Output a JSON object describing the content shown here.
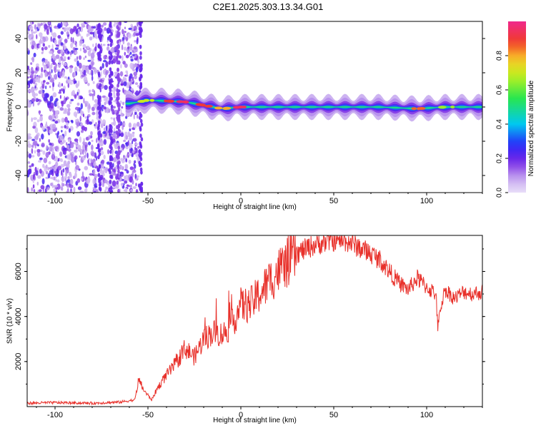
{
  "title": "C2E1.2025.303.13.34.G01",
  "chart_data": [
    {
      "type": "heatmap",
      "xlabel": "Height of straight line (km)",
      "ylabel": "Frequency (Hz)",
      "xlim": [
        -115,
        130
      ],
      "ylim": [
        -50,
        50
      ],
      "xticks": [
        "-100",
        "-50",
        "0",
        "50",
        "100"
      ],
      "xtick_values": [
        -100,
        -50,
        0,
        50,
        100
      ],
      "yticks": [
        "-40",
        "-20",
        "0",
        "20",
        "40"
      ],
      "ytick_values": [
        -40,
        -20,
        0,
        20,
        40
      ],
      "colorbar": {
        "label": "Normalized spectral amplitude",
        "range": [
          0,
          1
        ],
        "ticks": [
          "0.0",
          "0.2",
          "0.4",
          "0.6",
          "0.8"
        ],
        "tick_values": [
          0.0,
          0.2,
          0.4,
          0.6,
          0.8
        ]
      },
      "noise_region_km": [
        -115,
        -55
      ],
      "signal_band": [
        {
          "x": -60,
          "freq": 2,
          "amp": 0.55
        },
        {
          "x": -50,
          "freq": 4,
          "amp": 0.7
        },
        {
          "x": -40,
          "freq": 3.5,
          "amp": 0.9
        },
        {
          "x": -30,
          "freq": 3,
          "amp": 0.95
        },
        {
          "x": -20,
          "freq": 1,
          "amp": 0.9
        },
        {
          "x": -10,
          "freq": -1,
          "amp": 0.8
        },
        {
          "x": 0,
          "freq": 0,
          "amp": 0.95
        },
        {
          "x": 25,
          "freq": 0,
          "amp": 0.55
        },
        {
          "x": 50,
          "freq": 0,
          "amp": 0.5
        },
        {
          "x": 75,
          "freq": 0,
          "amp": 0.5
        },
        {
          "x": 95,
          "freq": -1,
          "amp": 0.85
        },
        {
          "x": 110,
          "freq": 0,
          "amp": 0.65
        },
        {
          "x": 130,
          "freq": 0,
          "amp": 0.6
        }
      ]
    },
    {
      "type": "line",
      "xlabel": "Height of straight line (km)",
      "ylabel": "SNR (10 * v/v)",
      "xlim": [
        -115,
        130
      ],
      "ylim": [
        0,
        7600
      ],
      "xticks": [
        "-100",
        "-50",
        "0",
        "50",
        "100"
      ],
      "xtick_values": [
        -100,
        -50,
        0,
        50,
        100
      ],
      "yticks": [
        "2000",
        "4000",
        "6000"
      ],
      "ytick_values": [
        2000,
        4000,
        6000
      ],
      "color": "#e8302a",
      "x": [
        -115,
        -100,
        -80,
        -65,
        -57,
        -55,
        -52,
        -48,
        -45,
        -40,
        -35,
        -30,
        -25,
        -20,
        -15,
        -10,
        -5,
        0,
        5,
        10,
        20,
        30,
        40,
        50,
        55,
        60,
        65,
        70,
        75,
        80,
        85,
        90,
        95,
        100,
        105,
        106,
        108,
        110,
        115,
        120,
        125,
        130
      ],
      "y": [
        150,
        180,
        150,
        200,
        300,
        1200,
        700,
        300,
        800,
        1400,
        1900,
        2600,
        2200,
        3000,
        3300,
        3200,
        3600,
        4500,
        4500,
        5000,
        6000,
        6800,
        7200,
        7400,
        7400,
        7250,
        7000,
        6800,
        6500,
        6000,
        5500,
        5200,
        5700,
        5300,
        5000,
        3500,
        4600,
        5200,
        4800,
        5100,
        5000,
        5100
      ]
    }
  ]
}
